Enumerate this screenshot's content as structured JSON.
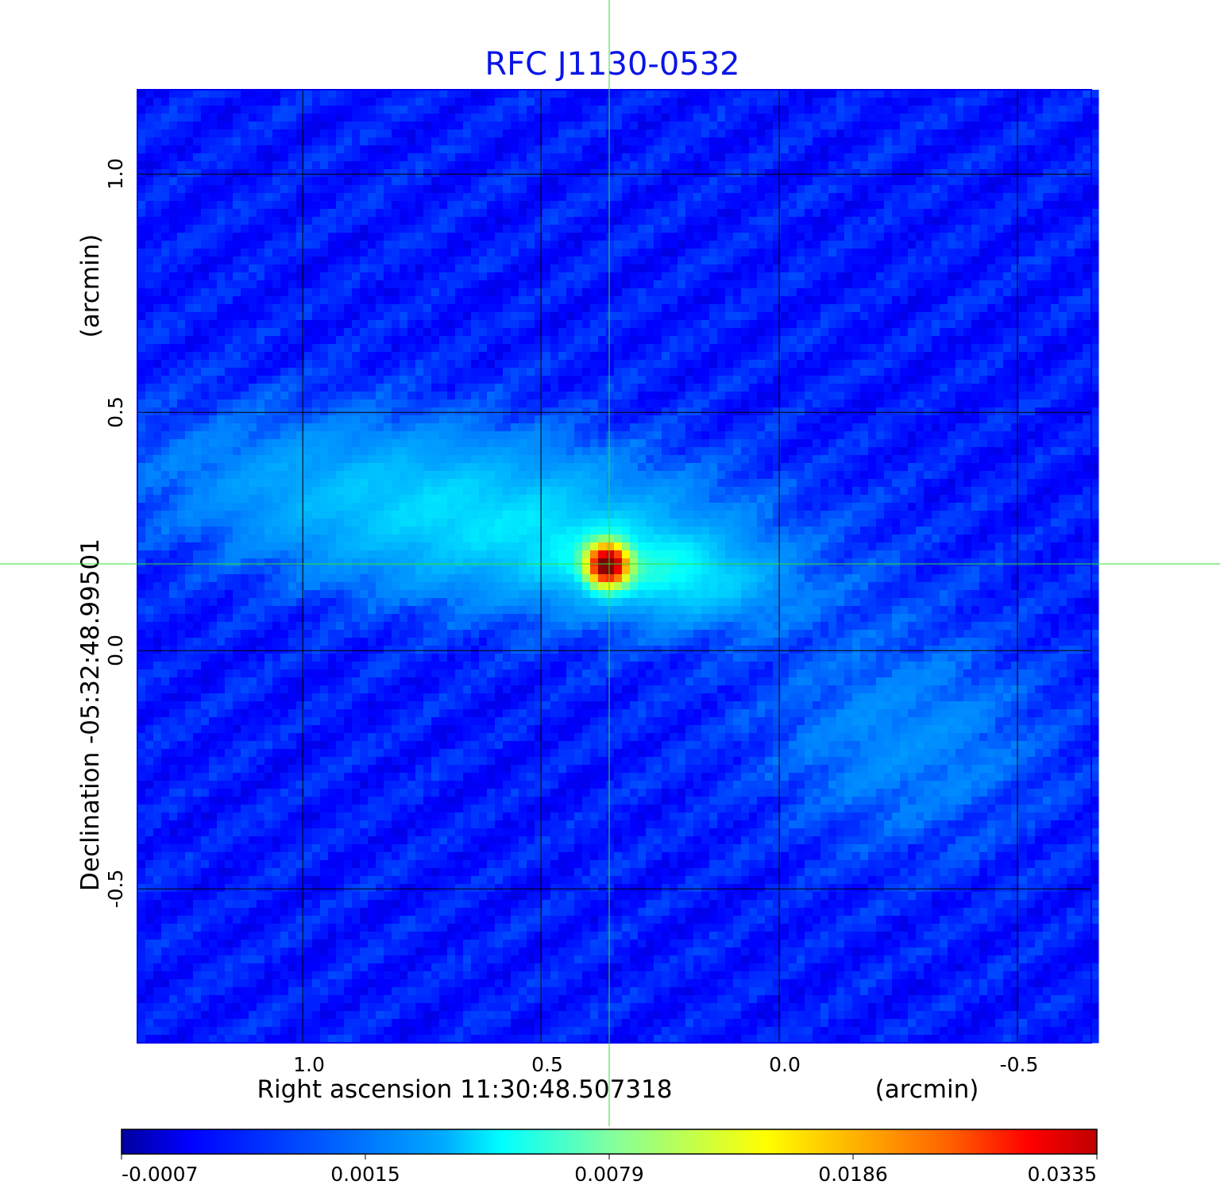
{
  "chart_data": {
    "type": "heatmap",
    "title": "RFC J1130-0532",
    "title_color": "#0a14e6",
    "xlabel": "Right ascension  11:30:48.507318",
    "xunit": "(arcmin)",
    "ylabel": "Declination  -05:32:48.99501",
    "yunit": "(arcmin)",
    "x_ticks": [
      1.0,
      0.5,
      0.0,
      -0.5
    ],
    "x_tick_labels": [
      "1.0",
      "0.5",
      "0.0",
      "-0.5"
    ],
    "y_ticks": [
      1.0,
      0.5,
      0.0,
      -0.5
    ],
    "y_tick_labels": [
      "1.0",
      "0.5",
      "0.0",
      "-0.5"
    ],
    "xlim": [
      1.347,
      -0.655
    ],
    "ylim": [
      -0.823,
      1.177
    ],
    "grid": true,
    "crosshair": {
      "x": 0.357,
      "y": 0.182,
      "color": "#33dd33"
    },
    "peak": {
      "x": 0.36,
      "y": 0.18,
      "value": 0.0335
    },
    "colormap": "jet",
    "colorbar": {
      "orientation": "horizontal",
      "placement": "bottom",
      "tick_labels": [
        "-0.0007",
        "0.0015",
        "0.0079",
        "0.0186",
        "0.0335"
      ],
      "tick_values": [
        -0.0007,
        0.0015,
        0.0079,
        0.0186,
        0.0335
      ]
    }
  }
}
